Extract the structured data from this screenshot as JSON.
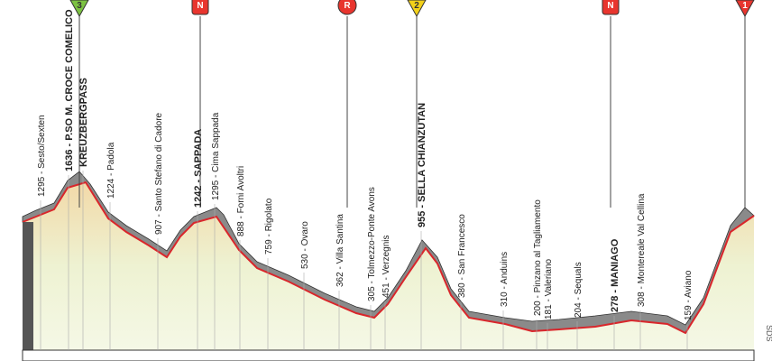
{
  "markers": [
    {
      "label": "3",
      "kind": "triangle",
      "color": "#7cc242"
    },
    {
      "label": "N",
      "kind": "square",
      "color": "#e8352e"
    },
    {
      "label": "R",
      "kind": "circle",
      "color": "#e8352e"
    },
    {
      "label": "2",
      "kind": "triangle",
      "color": "#f3d11a"
    },
    {
      "label": "N",
      "kind": "square",
      "color": "#e8352e"
    },
    {
      "label": "1",
      "kind": "triangle",
      "color": "#e8352e"
    }
  ],
  "waypoints": [
    {
      "label": "1295 - Sesto/Sexten",
      "bold": false
    },
    {
      "label": "1636 - P.SO M. CROCE COMELICO",
      "bold": true
    },
    {
      "label": "KREUZBERGPASS",
      "bold": true
    },
    {
      "label": "1224 - Padola",
      "bold": false
    },
    {
      "label": "907 - Santo Stefano di Cadore",
      "bold": false
    },
    {
      "label": "1242 - SAPPADA",
      "bold": true
    },
    {
      "label": "1295 - Cima Sappada",
      "bold": false
    },
    {
      "label": "888 - Forni Avoltri",
      "bold": false
    },
    {
      "label": "759 - Rigolato",
      "bold": false
    },
    {
      "label": "530 - Ovaro",
      "bold": false
    },
    {
      "label": "362 - Villa Santina",
      "bold": false
    },
    {
      "label": "305 - Tolmezzo-Ponte Avons",
      "bold": false
    },
    {
      "label": "451 - Verzegnis",
      "bold": false
    },
    {
      "label": "955 - SELLA CHIANZUTAN",
      "bold": true
    },
    {
      "label": "380 - San Francesco",
      "bold": false
    },
    {
      "label": "310 - Anduins",
      "bold": false
    },
    {
      "label": "200 - Pinzano al Tagliamento",
      "bold": false
    },
    {
      "label": "181 - Valeriano",
      "bold": false
    },
    {
      "label": "204 - Sequals",
      "bold": false
    },
    {
      "label": "278 - MANIAGO",
      "bold": true
    },
    {
      "label": "308 - Montereale Val Cellina",
      "bold": false
    },
    {
      "label": "159 - Aviano",
      "bold": false
    }
  ],
  "side_label": "SDS"
}
